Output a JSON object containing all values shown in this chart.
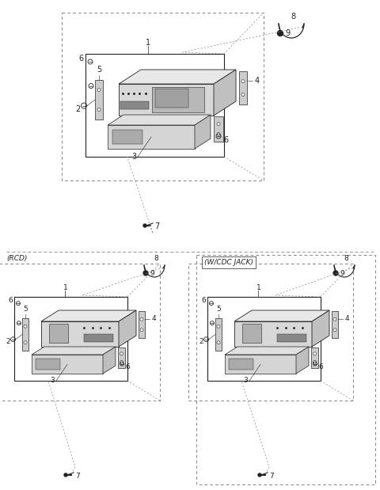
{
  "bg_color": "#ffffff",
  "line_color": "#222222",
  "dash_color": "#888888",
  "rcd_label": "(RCD)",
  "wcdc_label": "(W/CDC JACK)"
}
